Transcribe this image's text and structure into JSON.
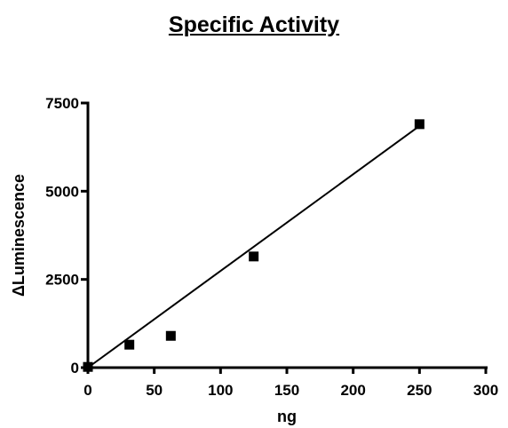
{
  "chart_data": {
    "type": "scatter",
    "title": "Specific Activity",
    "xlabel": "ng",
    "ylabel": "ΔLuminescence",
    "xlim": [
      0,
      300
    ],
    "ylim": [
      0,
      7500
    ],
    "x_ticks": [
      0,
      50,
      100,
      150,
      200,
      250,
      300
    ],
    "y_ticks": [
      0,
      2500,
      5000,
      7500
    ],
    "grid": false,
    "legend": "none",
    "series": [
      {
        "points": [
          {
            "x": 0,
            "y": 20
          },
          {
            "x": 31.25,
            "y": 650
          },
          {
            "x": 62.5,
            "y": 900
          },
          {
            "x": 125,
            "y": 3150
          },
          {
            "x": 250,
            "y": 6900
          }
        ]
      }
    ],
    "fit_line": {
      "x": [
        0,
        250
      ],
      "y": [
        0,
        6850
      ]
    },
    "colors": {
      "marker": "#000000",
      "line": "#000000",
      "axis": "#000000"
    }
  }
}
